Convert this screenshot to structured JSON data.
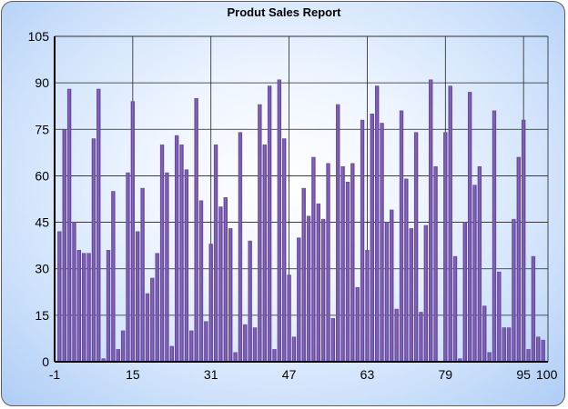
{
  "chart_data": {
    "type": "bar",
    "title": "Produt Sales Report",
    "xlabel": "",
    "ylabel": "",
    "xlim": [
      -1,
      100
    ],
    "ylim": [
      0,
      105
    ],
    "x_ticks": [
      "-1",
      "15",
      "31",
      "47",
      "63",
      "79",
      "95",
      "100"
    ],
    "y_ticks": [
      "0",
      "15",
      "30",
      "45",
      "60",
      "75",
      "90",
      "105"
    ],
    "grid": true,
    "series_color": "#6a4a9e",
    "x": [
      0,
      1,
      2,
      3,
      4,
      5,
      6,
      7,
      8,
      9,
      10,
      11,
      12,
      13,
      14,
      15,
      16,
      17,
      18,
      19,
      20,
      21,
      22,
      23,
      24,
      25,
      26,
      27,
      28,
      29,
      30,
      31,
      32,
      33,
      34,
      35,
      36,
      37,
      38,
      39,
      40,
      41,
      42,
      43,
      44,
      45,
      46,
      47,
      48,
      49,
      50,
      51,
      52,
      53,
      54,
      55,
      56,
      57,
      58,
      59,
      60,
      61,
      62,
      63,
      64,
      65,
      66,
      67,
      68,
      69,
      70,
      71,
      72,
      73,
      74,
      75,
      76,
      77,
      78,
      79,
      80,
      81,
      82,
      83,
      84,
      85,
      86,
      87,
      88,
      89,
      90,
      91,
      92,
      93,
      94,
      95,
      96,
      97,
      98,
      99
    ],
    "values": [
      42,
      75,
      88,
      45,
      36,
      35,
      35,
      72,
      88,
      1,
      36,
      55,
      4,
      10,
      61,
      84,
      42,
      56,
      22,
      27,
      35,
      70,
      61,
      5,
      73,
      70,
      62,
      10,
      85,
      52,
      13,
      38,
      70,
      50,
      53,
      43,
      3,
      74,
      12,
      39,
      11,
      83,
      70,
      89,
      4,
      91,
      72,
      28,
      8,
      40,
      56,
      47,
      66,
      51,
      46,
      64,
      14,
      83,
      63,
      58,
      64,
      24,
      78,
      36,
      80,
      89,
      77,
      45,
      49,
      17,
      81,
      59,
      43,
      74,
      16,
      44,
      91,
      63,
      0,
      74,
      89,
      34,
      1,
      45,
      87,
      57,
      63,
      18,
      3,
      81,
      29,
      11,
      11,
      46,
      66,
      78,
      4,
      34,
      8,
      7
    ]
  }
}
